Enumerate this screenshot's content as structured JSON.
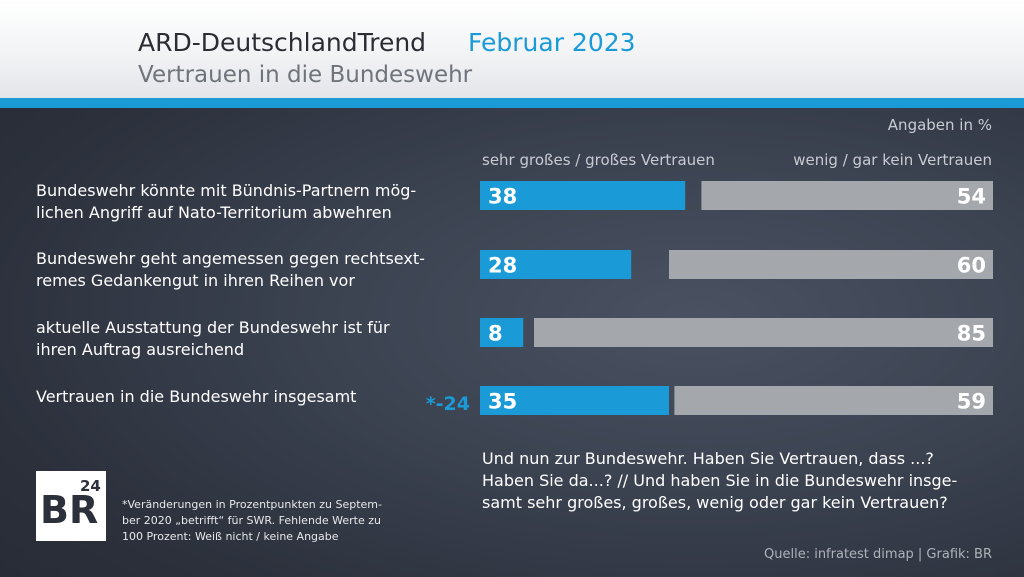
{
  "header": {
    "title": "ARD-DeutschlandTrend",
    "date": "Februar 2023",
    "subtitle": "Vertrauen in die Bundeswehr"
  },
  "chart_data": {
    "type": "bar",
    "orientation": "horizontal-diverging",
    "units_label": "Angaben in %",
    "series": [
      {
        "name": "sehr großes / großes Vertrauen",
        "values": [
          38,
          28,
          8,
          35
        ],
        "color": "#1a9ad6"
      },
      {
        "name": "wenig / gar kein Vertrauen",
        "values": [
          54,
          60,
          85,
          59
        ],
        "color": "#a4a7ac"
      }
    ],
    "categories": [
      "Bundeswehr könnte mit Bündnis-Partnern mög-lichen Angriff auf Nato-Territorium abwehren",
      "Bundeswehr geht angemessen gegen rechtsext-remes Gedankengut in ihren Reihen vor",
      "aktuelle Ausstattung der Bundeswehr ist für ihren Auftrag ausreichend",
      "Vertrauen in die Bundeswehr insgesamt"
    ],
    "category_lines": [
      [
        "Bundeswehr könnte mit Bündnis-Partnern mög-",
        "lichen Angriff auf Nato-Territorium abwehren"
      ],
      [
        "Bundeswehr geht angemessen gegen rechtsext-",
        "remes Gedankengut in ihren Reihen vor"
      ],
      [
        "aktuelle Ausstattung der Bundeswehr ist für",
        "ihren Auftrag ausreichend"
      ],
      [
        "Vertrauen in die Bundeswehr insgesamt"
      ]
    ],
    "change_annotations": [
      "",
      "",
      "",
      "*-24"
    ],
    "scale_max": 100
  },
  "question": "Und nun zur Bundeswehr. Haben Sie Vertrauen, dass ...? Haben Sie da...? // Und haben Sie in die Bundeswehr insge-samt sehr großes, großes, wenig oder gar kein Vertrauen?",
  "question_lines": [
    "Und nun zur Bundeswehr. Haben Sie Vertrauen, dass ...?",
    "Haben Sie da...? // Und haben Sie in die Bundeswehr insge-",
    "samt sehr großes, großes, wenig oder gar kein Vertrauen?"
  ],
  "footnote_lines": [
    "*Veränderungen in Prozentpunkten zu Septem-",
    "ber 2020 „betrifft“ für SWR. Fehlende Werte zu",
    "100 Prozent: Weiß nicht / keine Angabe"
  ],
  "logo": {
    "text": "BR",
    "superscript": "24"
  },
  "source": "Quelle: infratest dimap | Grafik: BR"
}
